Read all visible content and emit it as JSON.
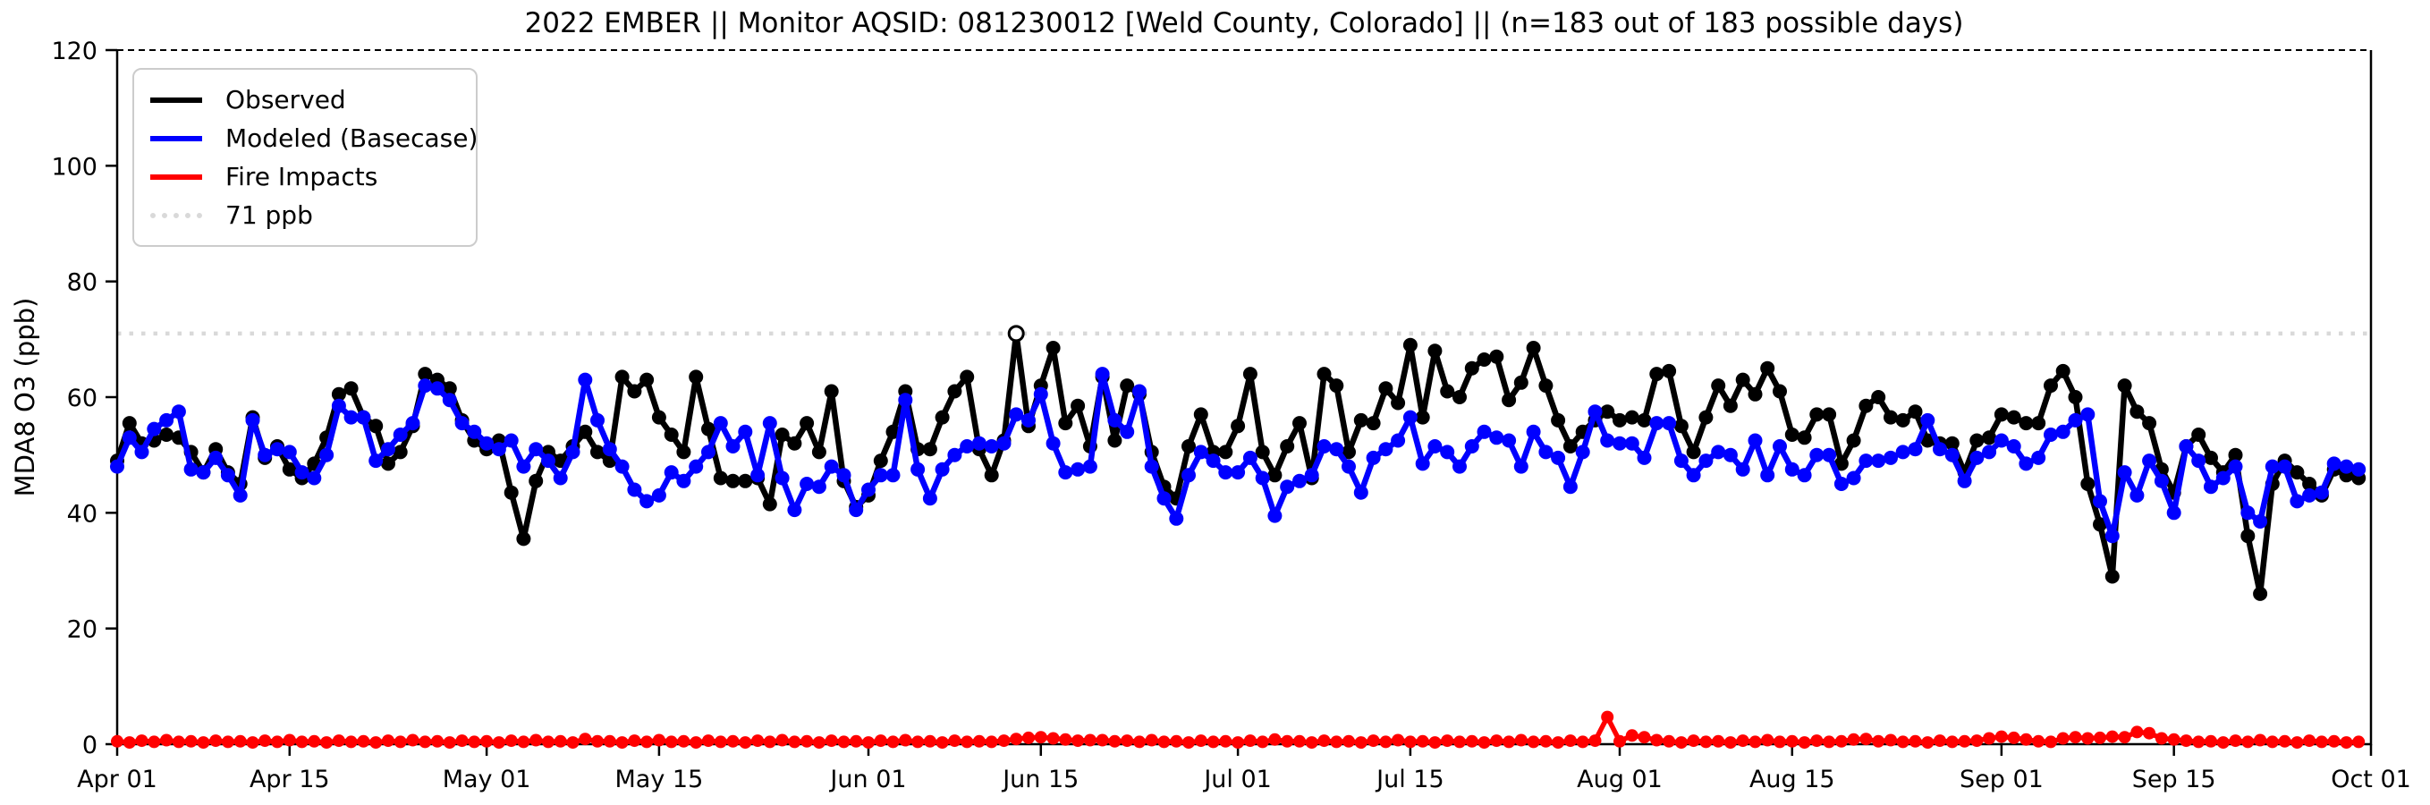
{
  "chart_data": {
    "type": "line",
    "title": "2022 EMBER || Monitor AQSID: 081230012 [Weld County, Colorado] || (n=183 out of 183 possible days)",
    "xlabel": "",
    "ylabel": "MDA8 O3 (ppb)",
    "ylim": [
      0,
      120
    ],
    "yticks": [
      0,
      20,
      40,
      60,
      80,
      100,
      120
    ],
    "x_axis_days": 183,
    "start_date": "Apr 01",
    "end_date": "Oct 01",
    "xticks": [
      {
        "label": "Apr 01",
        "day": 0
      },
      {
        "label": "Apr 15",
        "day": 14
      },
      {
        "label": "May 01",
        "day": 30
      },
      {
        "label": "May 15",
        "day": 44
      },
      {
        "label": "Jun 01",
        "day": 61
      },
      {
        "label": "Jun 15",
        "day": 75
      },
      {
        "label": "Jul 01",
        "day": 91
      },
      {
        "label": "Jul 15",
        "day": 105
      },
      {
        "label": "Aug 01",
        "day": 122
      },
      {
        "label": "Aug 15",
        "day": 136
      },
      {
        "label": "Sep 01",
        "day": 153
      },
      {
        "label": "Sep 15",
        "day": 167
      },
      {
        "label": "Oct 01",
        "day": 183
      }
    ],
    "threshold": {
      "value": 71,
      "label": "71 ppb",
      "color": "#d9d9d9"
    },
    "grid": false,
    "legend_position": "upper-left",
    "legend": {
      "items": [
        {
          "label": "Observed",
          "color": "#000000",
          "style": "solid"
        },
        {
          "label": "Modeled (Basecase)",
          "color": "#0000ff",
          "style": "solid"
        },
        {
          "label": "Fire Impacts",
          "color": "#ff0000",
          "style": "solid"
        },
        {
          "label": "71 ppb",
          "color": "#d9d9d9",
          "style": "dotted"
        }
      ]
    },
    "observed_open_marker_index": 73,
    "series": [
      {
        "name": "Observed",
        "color": "#000000",
        "marker_radius": 8,
        "line_width": 6.5,
        "values": [
          49,
          55.5,
          52,
          52.5,
          53.5,
          53,
          50.5,
          47,
          51,
          47,
          45,
          56.5,
          49.5,
          51.5,
          47.5,
          46,
          48.5,
          53,
          60.5,
          61.5,
          56.5,
          55,
          48.5,
          50.5,
          55,
          64,
          63,
          61.5,
          56,
          52.5,
          51,
          52.5,
          43.5,
          35.5,
          45.5,
          50.5,
          49,
          51.5,
          54,
          50.5,
          49,
          63.5,
          61,
          63,
          56.5,
          53.5,
          50.5,
          63.5,
          54.5,
          46,
          45.5,
          45.5,
          46,
          41.5,
          53.5,
          52,
          55.5,
          50.5,
          61,
          45.5,
          41,
          43,
          49,
          54,
          61,
          51,
          51,
          56.5,
          61,
          63.5,
          51,
          46.5,
          52.5,
          71,
          55,
          62,
          68.5,
          55.5,
          58.5,
          51.5,
          63.5,
          52.5,
          62,
          60.5,
          50.5,
          44.5,
          42.5,
          51.5,
          57,
          50.5,
          50.5,
          55,
          64,
          50.5,
          46.5,
          51.5,
          55.5,
          46,
          64,
          62,
          50.5,
          56,
          55.5,
          61.5,
          59,
          69,
          56.5,
          68,
          61,
          60,
          65,
          66.5,
          67,
          59.5,
          62.5,
          68.5,
          62,
          56,
          51.5,
          54,
          56,
          57.5,
          56,
          56.5,
          56,
          64,
          64.5,
          55,
          50.5,
          56.5,
          62,
          58.5,
          63,
          60.5,
          65,
          61,
          53.5,
          53,
          57,
          57,
          48.5,
          52.5,
          58.5,
          60,
          56.5,
          56,
          57.5,
          52.5,
          52,
          52,
          47,
          52.5,
          53,
          57,
          56.5,
          55.5,
          55.5,
          62,
          64.5,
          60,
          45,
          38,
          29,
          62,
          57.5,
          55.5,
          47.5,
          43.5,
          51.5,
          53.5,
          49.5,
          47,
          50,
          36,
          26,
          45,
          49,
          47,
          45,
          43,
          47.5,
          46.5,
          46
        ]
      },
      {
        "name": "Modeled (Basecase)",
        "color": "#0000ff",
        "marker_radius": 8,
        "line_width": 6.5,
        "values": [
          48,
          53,
          50.5,
          54.5,
          56,
          57.5,
          47.5,
          47,
          49.5,
          46.5,
          43,
          56,
          50,
          51,
          50.5,
          47,
          46,
          50,
          58.5,
          56.5,
          56.5,
          49,
          51,
          53.5,
          55.5,
          62,
          61.5,
          59.5,
          55.5,
          54,
          52,
          51,
          52.5,
          48,
          51,
          49,
          46,
          50.5,
          63,
          56,
          51,
          48,
          44,
          42,
          43,
          47,
          45.5,
          48,
          50.5,
          55.5,
          51.5,
          54,
          46.5,
          55.5,
          46,
          40.5,
          45,
          44.5,
          48,
          46.5,
          40.5,
          44,
          46.5,
          46.5,
          59.5,
          47.5,
          42.5,
          47.5,
          50,
          51.5,
          52,
          51.5,
          52,
          57,
          56,
          60.5,
          52,
          47,
          47.5,
          48,
          64,
          56,
          54,
          61,
          48,
          42.5,
          39,
          46.5,
          50.5,
          49,
          47,
          47,
          49.5,
          46,
          39.5,
          44.5,
          45.5,
          46.5,
          51.5,
          51,
          48,
          43.5,
          49.5,
          51,
          52.5,
          56.5,
          48.5,
          51.5,
          50.5,
          48,
          51.5,
          54,
          53,
          52.5,
          48,
          54,
          50.5,
          49.5,
          44.5,
          50.5,
          57.5,
          52.5,
          52,
          52,
          49.5,
          55.5,
          55.5,
          49,
          46.5,
          49,
          50.5,
          50,
          47.5,
          52.5,
          46.5,
          51.5,
          47.5,
          46.5,
          50,
          50,
          45,
          46,
          49,
          49,
          49.5,
          50.5,
          51,
          56,
          51,
          50,
          45.5,
          49.5,
          50.5,
          52.5,
          51.5,
          48.5,
          49.5,
          53.5,
          54,
          56,
          57,
          42,
          36,
          47,
          43,
          49,
          45.5,
          40,
          51.5,
          49,
          44.5,
          46,
          48,
          40,
          38.5,
          48,
          48,
          42,
          43,
          43.5,
          48.5,
          48,
          47.5
        ]
      },
      {
        "name": "Fire Impacts",
        "color": "#ff0000",
        "marker_radius": 7,
        "line_width": 5.5,
        "values": [
          0.5,
          0.3,
          0.6,
          0.4,
          0.7,
          0.4,
          0.5,
          0.3,
          0.6,
          0.4,
          0.5,
          0.3,
          0.6,
          0.4,
          0.7,
          0.4,
          0.5,
          0.3,
          0.6,
          0.4,
          0.5,
          0.3,
          0.6,
          0.4,
          0.7,
          0.4,
          0.5,
          0.3,
          0.6,
          0.4,
          0.5,
          0.3,
          0.6,
          0.4,
          0.7,
          0.4,
          0.5,
          0.3,
          0.9,
          0.5,
          0.5,
          0.3,
          0.6,
          0.4,
          0.7,
          0.4,
          0.5,
          0.3,
          0.6,
          0.4,
          0.5,
          0.3,
          0.6,
          0.4,
          0.7,
          0.4,
          0.5,
          0.3,
          0.6,
          0.4,
          0.5,
          0.3,
          0.6,
          0.4,
          0.7,
          0.4,
          0.5,
          0.3,
          0.6,
          0.4,
          0.5,
          0.4,
          0.6,
          0.9,
          1.1,
          1.2,
          1.0,
          0.8,
          0.6,
          0.7,
          0.7,
          0.5,
          0.6,
          0.4,
          0.7,
          0.4,
          0.5,
          0.3,
          0.6,
          0.4,
          0.5,
          0.3,
          0.6,
          0.4,
          0.8,
          0.5,
          0.5,
          0.3,
          0.6,
          0.4,
          0.5,
          0.3,
          0.6,
          0.4,
          0.7,
          0.4,
          0.5,
          0.3,
          0.6,
          0.4,
          0.5,
          0.3,
          0.6,
          0.4,
          0.7,
          0.4,
          0.5,
          0.3,
          0.6,
          0.4,
          0.6,
          4.7,
          0.5,
          1.5,
          1.2,
          0.7,
          0.5,
          0.3,
          0.6,
          0.4,
          0.5,
          0.3,
          0.6,
          0.4,
          0.7,
          0.4,
          0.5,
          0.3,
          0.6,
          0.4,
          0.5,
          0.8,
          0.9,
          0.5,
          0.7,
          0.4,
          0.5,
          0.3,
          0.6,
          0.4,
          0.5,
          0.6,
          1.0,
          1.3,
          1.1,
          0.8,
          0.5,
          0.4,
          1.0,
          1.2,
          1.0,
          1.1,
          1.3,
          1.2,
          2.1,
          1.9,
          1.0,
          0.8,
          0.6,
          0.4,
          0.5,
          0.3,
          0.6,
          0.4,
          0.7,
          0.4,
          0.5,
          0.3,
          0.6,
          0.4,
          0.5,
          0.3,
          0.4
        ]
      }
    ]
  }
}
